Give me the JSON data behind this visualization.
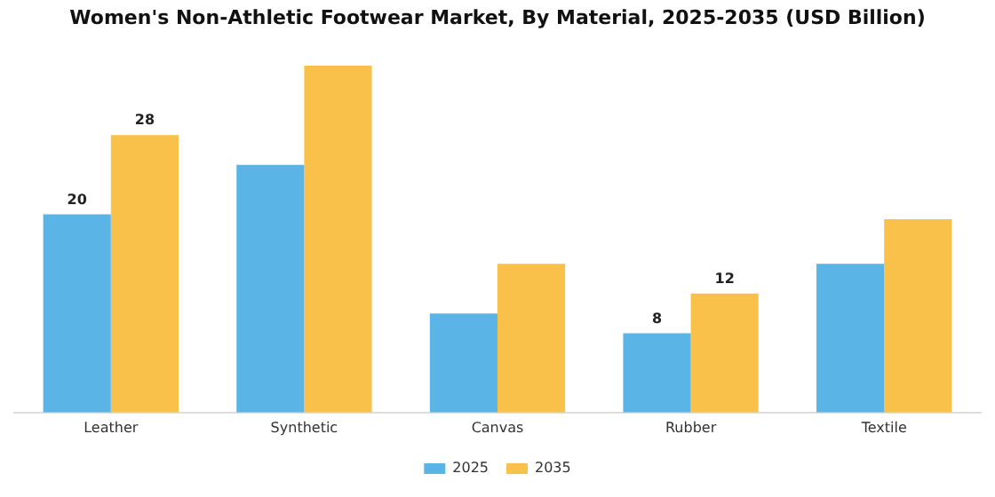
{
  "chart_data": {
    "type": "bar",
    "title": "Women's Non-Athletic Footwear Market, By Material, 2025-2035 (USD Billion)",
    "categories": [
      "Leather",
      "Synthetic",
      "Canvas",
      "Rubber",
      "Textile"
    ],
    "series": [
      {
        "name": "2025",
        "color": "#5ab4e5",
        "values": [
          20,
          25,
          10,
          8,
          15
        ],
        "value_labels": [
          "20",
          null,
          null,
          "8",
          null
        ]
      },
      {
        "name": "2035",
        "color": "#f9c04a",
        "values": [
          28,
          35,
          15,
          12,
          19.5
        ],
        "value_labels": [
          "28",
          null,
          null,
          "12",
          null
        ]
      }
    ],
    "legend": "bottom",
    "grid": false,
    "tick_labels": "x"
  }
}
